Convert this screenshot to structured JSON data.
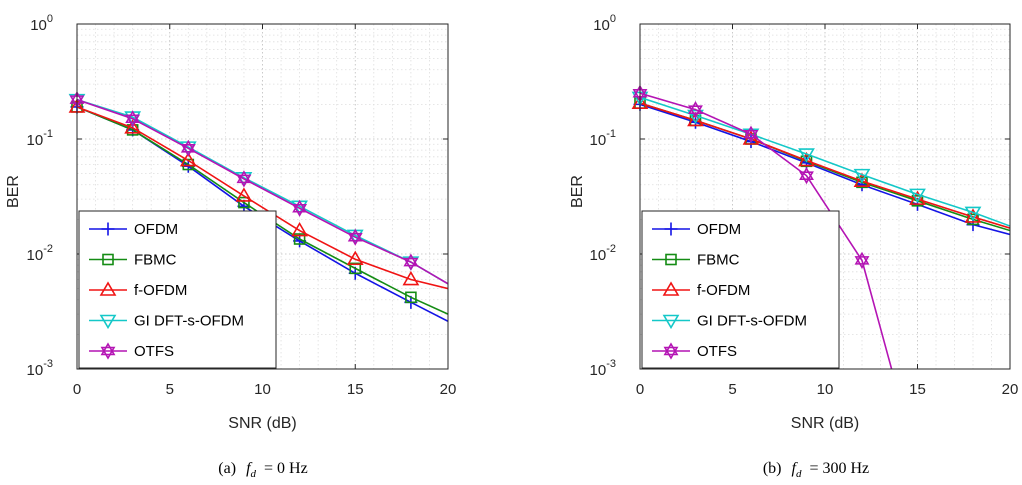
{
  "figure": {
    "panels": [
      {
        "caption_label": "(a)",
        "caption_symbol": "f",
        "caption_subscript": "d",
        "caption_value": "= 0 Hz"
      },
      {
        "caption_label": "(b)",
        "caption_symbol": "f",
        "caption_subscript": "d",
        "caption_value": "= 300 Hz"
      }
    ]
  },
  "colors": {
    "OFDM": "#1414e6",
    "FBMC": "#148c14",
    "f-OFDM": "#f01414",
    "GI DFT-s-OFDM": "#14c8c8",
    "OTFS": "#b414b4"
  },
  "chart_data": [
    {
      "type": "line",
      "title": "",
      "xlabel": "SNR (dB)",
      "ylabel": "BER",
      "xlim": [
        0,
        20
      ],
      "ylim": [
        0.001,
        1
      ],
      "yscale": "log",
      "grid": true,
      "legend_position": "bottom-left",
      "x_ticks": [
        "0",
        "5",
        "10",
        "15",
        "20"
      ],
      "y_ticks": [
        {
          "value": 0.001,
          "base": "10",
          "exp": "-3"
        },
        {
          "value": 0.01,
          "base": "10",
          "exp": "-2"
        },
        {
          "value": 0.1,
          "base": "10",
          "exp": "-1"
        },
        {
          "value": 1,
          "base": "10",
          "exp": "0"
        }
      ],
      "series": [
        {
          "name": "OFDM",
          "marker": "plus",
          "x": [
            0,
            3,
            6,
            9,
            12,
            15,
            18,
            20
          ],
          "y": [
            0.19,
            0.12,
            0.058,
            0.026,
            0.013,
            0.0068,
            0.0038,
            0.0026
          ]
        },
        {
          "name": "FBMC",
          "marker": "square",
          "x": [
            0,
            3,
            6,
            9,
            12,
            15,
            18,
            20
          ],
          "y": [
            0.19,
            0.12,
            0.06,
            0.028,
            0.0135,
            0.0075,
            0.0042,
            0.003
          ]
        },
        {
          "name": "f-OFDM",
          "marker": "triangle-up",
          "x": [
            0,
            3,
            6,
            9,
            12,
            15,
            18,
            20
          ],
          "y": [
            0.19,
            0.125,
            0.065,
            0.032,
            0.016,
            0.009,
            0.006,
            0.005
          ]
        },
        {
          "name": "GI DFT-s-OFDM",
          "marker": "triangle-down",
          "x": [
            0,
            3,
            6,
            9,
            12,
            15,
            18,
            20
          ],
          "y": [
            0.22,
            0.155,
            0.085,
            0.046,
            0.026,
            0.0145,
            0.0085,
            0.0055
          ]
        },
        {
          "name": "OTFS",
          "marker": "hexagram",
          "x": [
            0,
            3,
            6,
            9,
            12,
            15,
            18,
            20
          ],
          "y": [
            0.22,
            0.15,
            0.083,
            0.045,
            0.025,
            0.014,
            0.0085,
            0.0055
          ]
        }
      ]
    },
    {
      "type": "line",
      "title": "",
      "xlabel": "SNR (dB)",
      "ylabel": "BER",
      "xlim": [
        0,
        20
      ],
      "ylim": [
        0.001,
        1
      ],
      "yscale": "log",
      "grid": true,
      "legend_position": "bottom-left",
      "x_ticks": [
        "0",
        "5",
        "10",
        "15",
        "20"
      ],
      "y_ticks": [
        {
          "value": 0.001,
          "base": "10",
          "exp": "-3"
        },
        {
          "value": 0.01,
          "base": "10",
          "exp": "-2"
        },
        {
          "value": 0.1,
          "base": "10",
          "exp": "-1"
        },
        {
          "value": 1,
          "base": "10",
          "exp": "0"
        }
      ],
      "series": [
        {
          "name": "OFDM",
          "marker": "plus",
          "x": [
            0,
            3,
            6,
            9,
            12,
            15,
            18,
            20
          ],
          "y": [
            0.2,
            0.14,
            0.095,
            0.062,
            0.04,
            0.027,
            0.018,
            0.0148
          ]
        },
        {
          "name": "FBMC",
          "marker": "square",
          "x": [
            0,
            3,
            6,
            9,
            12,
            15,
            18,
            20
          ],
          "y": [
            0.205,
            0.145,
            0.1,
            0.064,
            0.042,
            0.029,
            0.02,
            0.016
          ]
        },
        {
          "name": "f-OFDM",
          "marker": "triangle-up",
          "x": [
            0,
            3,
            6,
            9,
            12,
            15,
            18,
            20
          ],
          "y": [
            0.205,
            0.145,
            0.1,
            0.065,
            0.043,
            0.03,
            0.021,
            0.0168
          ]
        },
        {
          "name": "GI DFT-s-OFDM",
          "marker": "triangle-down",
          "x": [
            0,
            3,
            6,
            9,
            12,
            15,
            18,
            20
          ],
          "y": [
            0.23,
            0.16,
            0.11,
            0.074,
            0.049,
            0.033,
            0.023,
            0.0175
          ]
        },
        {
          "name": "OTFS",
          "marker": "hexagram",
          "x": [
            0,
            3,
            6,
            9,
            12,
            13.6
          ],
          "y": [
            0.25,
            0.18,
            0.11,
            0.048,
            0.0088,
            0.001
          ]
        }
      ]
    }
  ]
}
